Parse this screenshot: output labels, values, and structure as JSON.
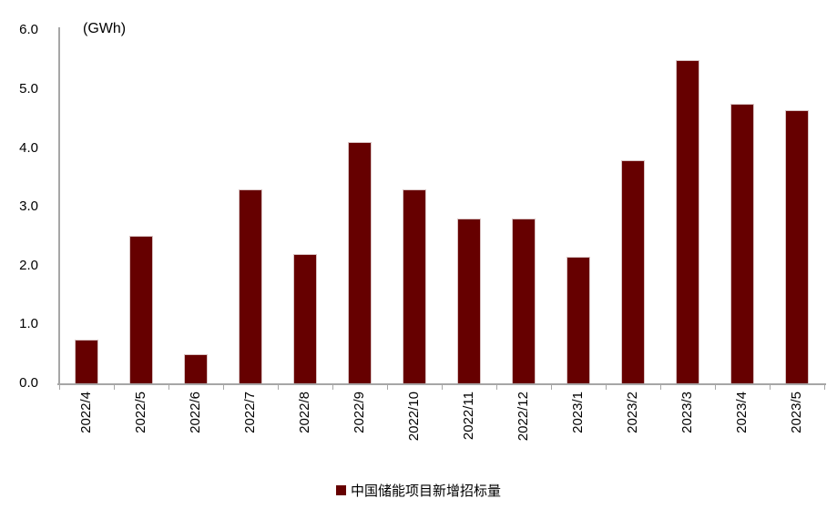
{
  "chart_data": {
    "type": "bar",
    "title": "",
    "unit_label": "(GWh)",
    "categories": [
      "2022/4",
      "2022/5",
      "2022/6",
      "2022/7",
      "2022/8",
      "2022/9",
      "2022/10",
      "2022/11",
      "2022/12",
      "2023/1",
      "2023/2",
      "2023/3",
      "2023/4",
      "2023/5"
    ],
    "series": [
      {
        "name": "中国储能项目新增招标量",
        "values": [
          0.75,
          2.5,
          0.5,
          3.3,
          2.2,
          4.1,
          3.3,
          2.8,
          2.8,
          2.15,
          3.8,
          5.5,
          4.75,
          4.65
        ]
      }
    ],
    "ylim": [
      0,
      6
    ],
    "y_ticks": [
      "0.0",
      "1.0",
      "2.0",
      "3.0",
      "4.0",
      "5.0",
      "6.0"
    ],
    "xlabel": "",
    "ylabel": "",
    "grid": false,
    "legend_position": "bottom",
    "colors": {
      "bar": "#660000",
      "axis": "#a6a6a6",
      "text": "#000000",
      "background": "#ffffff"
    }
  }
}
